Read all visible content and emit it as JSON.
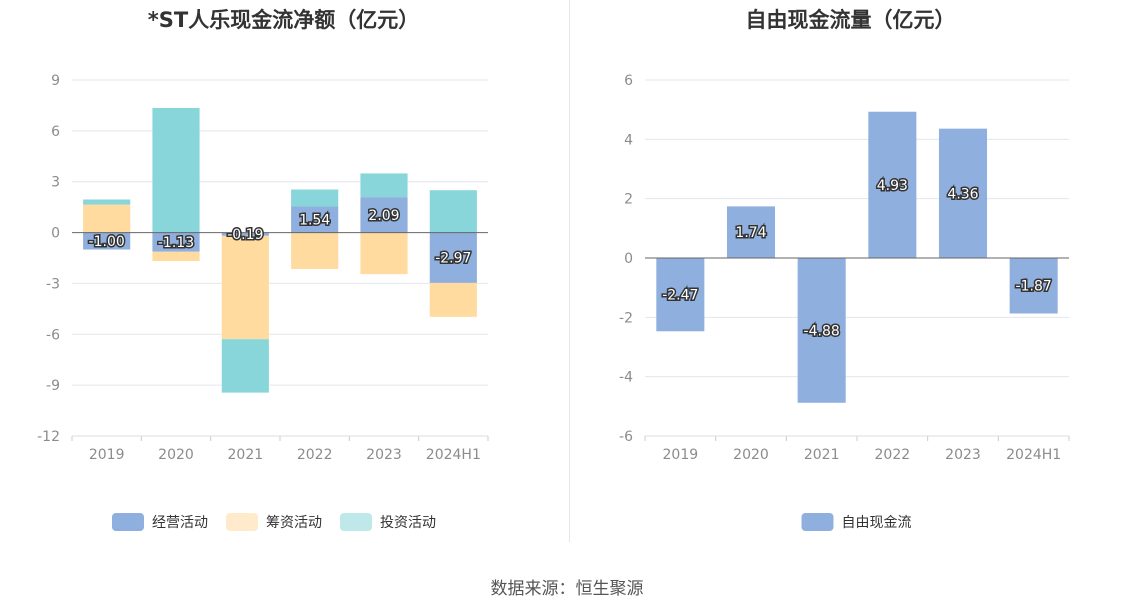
{
  "colors": {
    "operating": "#8fafde",
    "financing": "#ffdba0",
    "investing": "#88d6d9",
    "fcf": "#8fafde",
    "grid": "#e3e6ee",
    "axis": "#666666"
  },
  "chart_data": [
    {
      "type": "bar",
      "stacked": true,
      "title": "*ST人乐现金流净额（亿元）",
      "categories": [
        "2019",
        "2020",
        "2021",
        "2022",
        "2023",
        "2024H1"
      ],
      "ylim": [
        -12,
        9
      ],
      "yticks": [
        9,
        6,
        3,
        0,
        -3,
        -6,
        -9,
        -12
      ],
      "legend_position": "bottom",
      "series": [
        {
          "name": "经营活动",
          "values": [
            -1.0,
            -1.13,
            -0.19,
            1.54,
            2.09,
            -2.97
          ],
          "labels": [
            "-1.00",
            "-1.13",
            "-0.19",
            "1.54",
            "2.09",
            "-2.97"
          ]
        },
        {
          "name": "筹资活动",
          "values": [
            1.65,
            -0.55,
            -6.1,
            -2.15,
            -2.45,
            -2.0
          ]
        },
        {
          "name": "投资活动",
          "values": [
            0.3,
            7.35,
            -3.15,
            1.0,
            1.4,
            2.5
          ]
        }
      ]
    },
    {
      "type": "bar",
      "title": "自由现金流量（亿元）",
      "categories": [
        "2019",
        "2020",
        "2021",
        "2022",
        "2023",
        "2024H1"
      ],
      "ylim": [
        -6,
        6
      ],
      "yticks": [
        6,
        4,
        2,
        0,
        -2,
        -4,
        -6
      ],
      "legend_position": "bottom",
      "series": [
        {
          "name": "自由现金流",
          "values": [
            -2.47,
            1.74,
            -4.88,
            4.93,
            4.36,
            -1.87
          ],
          "labels": [
            "-2.47",
            "1.74",
            "-4.88",
            "4.93",
            "4.36",
            "-1.87"
          ]
        }
      ]
    }
  ],
  "footer": {
    "source": "数据来源：恒生聚源"
  }
}
